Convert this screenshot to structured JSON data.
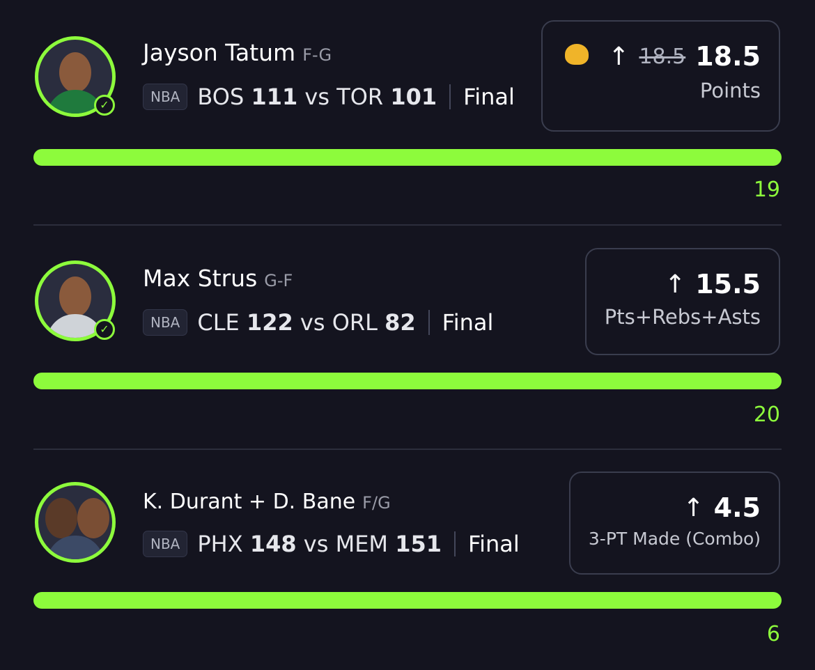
{
  "accent": "#8dfb3c",
  "picks": [
    {
      "player": "Jayson Tatum",
      "position": "F-G",
      "league": "NBA",
      "team1": "BOS",
      "score1": "111",
      "vs": "vs",
      "team2": "TOR",
      "score2": "101",
      "status": "Final",
      "old_line": "18.5",
      "line": "18.5",
      "stat": "Points",
      "result": "19",
      "progress": 1.0
    },
    {
      "player": "Max Strus",
      "position": "G-F",
      "league": "NBA",
      "team1": "CLE",
      "score1": "122",
      "vs": "vs",
      "team2": "ORL",
      "score2": "82",
      "status": "Final",
      "line": "15.5",
      "stat": "Pts+Rebs+Asts",
      "result": "20",
      "progress": 1.0
    },
    {
      "player": "K. Durant + D. Bane",
      "position": "F/G",
      "league": "NBA",
      "team1": "PHX",
      "score1": "148",
      "vs": "vs",
      "team2": "MEM",
      "score2": "151",
      "status": "Final",
      "line": "4.5",
      "stat": "3-PT Made (Combo)",
      "result": "6",
      "progress": 1.0
    }
  ]
}
